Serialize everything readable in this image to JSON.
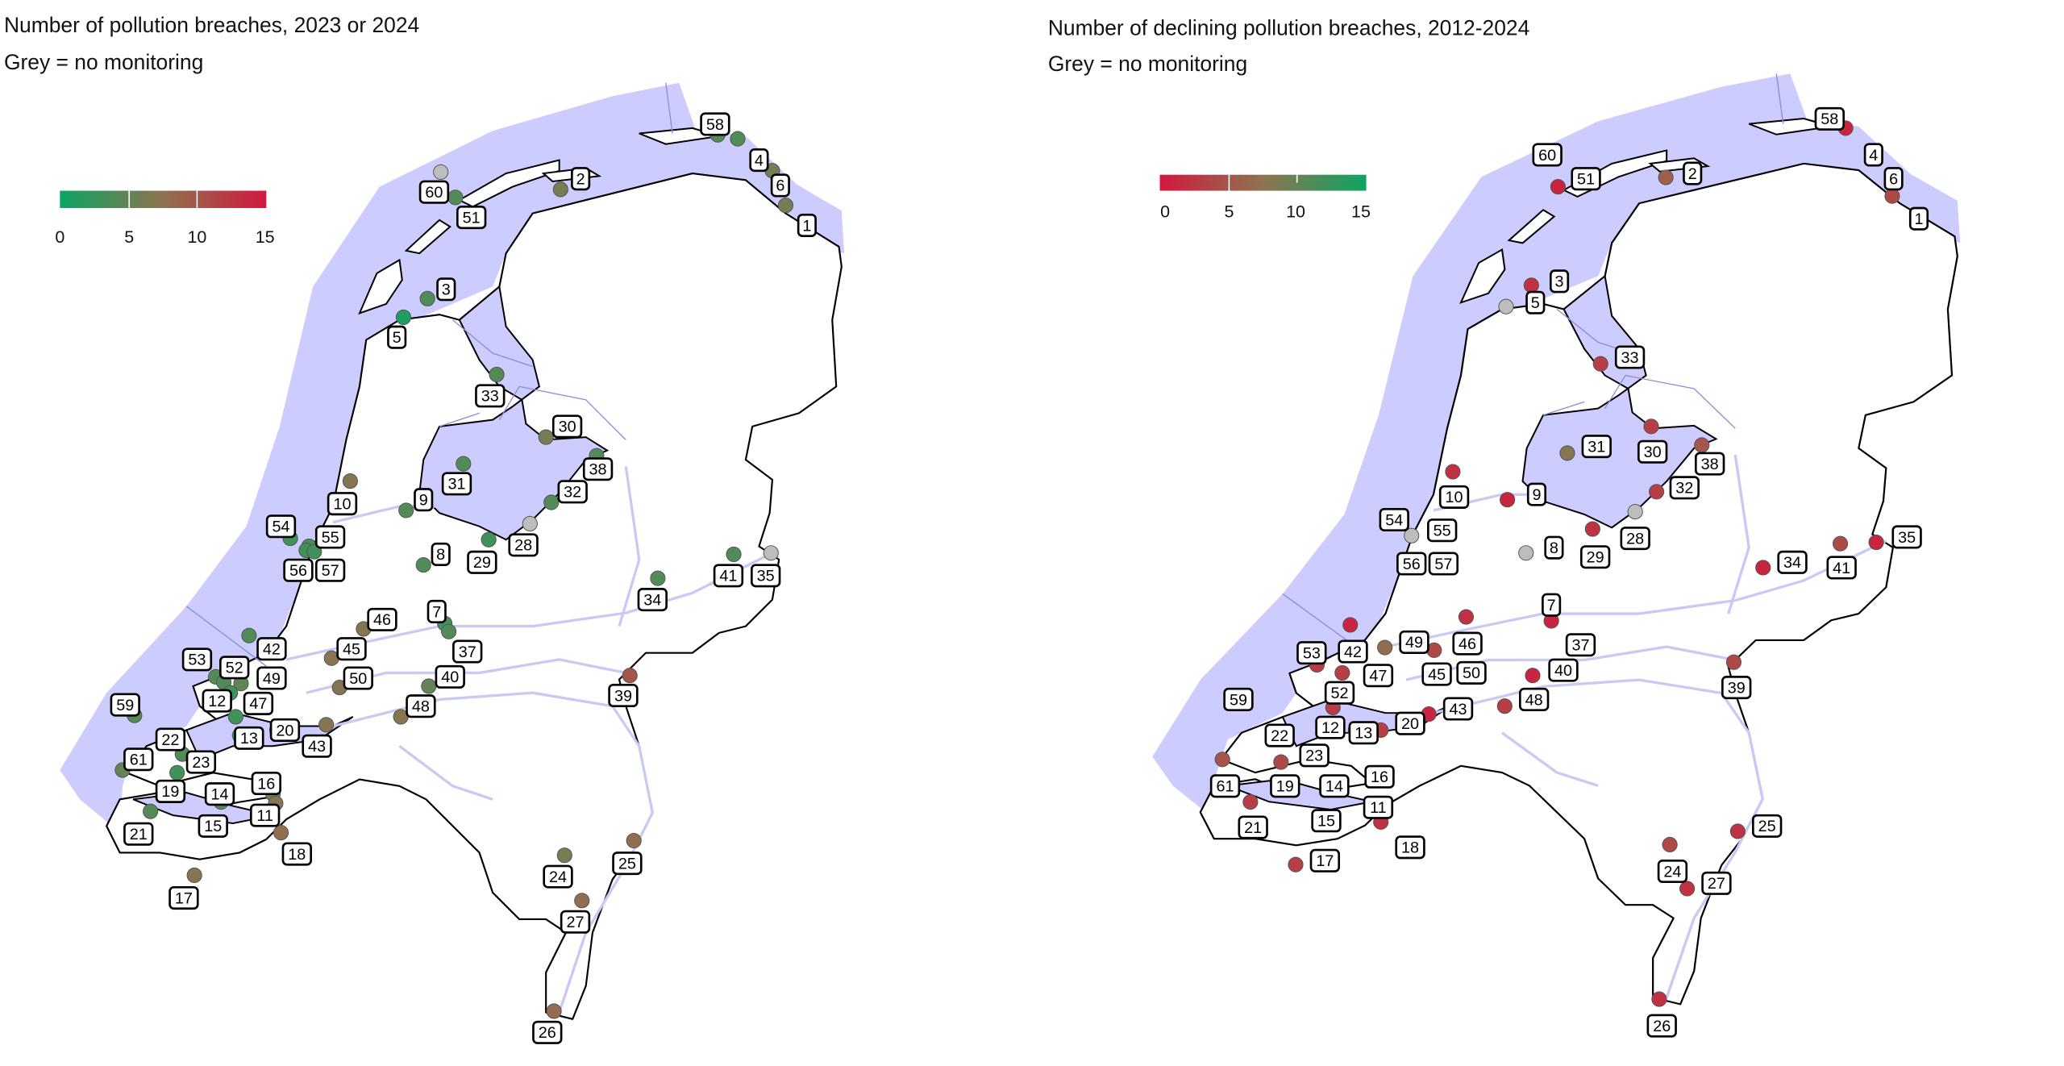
{
  "left_map": {
    "title": "Number of pollution breaches, 2023 or 2024",
    "subtitle": "Grey = no   monitoring",
    "legend": {
      "ticks": [
        "0",
        "5",
        "10",
        "15"
      ],
      "min": 0,
      "max": 15,
      "colors": [
        "#0da562",
        "#8e7350",
        "#d2193f"
      ]
    },
    "points": [
      {
        "id": "60",
        "value": null
      },
      {
        "id": "51",
        "value": 4
      },
      {
        "id": "2",
        "value": 6
      },
      {
        "id": "58",
        "value": 4
      },
      {
        "id": "4",
        "value": 4
      },
      {
        "id": "6",
        "value": 6
      },
      {
        "id": "1",
        "value": 6
      },
      {
        "id": "3",
        "value": 4
      },
      {
        "id": "5",
        "value": 1
      },
      {
        "id": "33",
        "value": 4
      },
      {
        "id": "30",
        "value": 6
      },
      {
        "id": "38",
        "value": 4
      },
      {
        "id": "31",
        "value": 4
      },
      {
        "id": "32",
        "value": 4
      },
      {
        "id": "9",
        "value": 4
      },
      {
        "id": "10",
        "value": 7
      },
      {
        "id": "28",
        "value": null
      },
      {
        "id": "29",
        "value": 3
      },
      {
        "id": "8",
        "value": 4
      },
      {
        "id": "54",
        "value": 3
      },
      {
        "id": "55",
        "value": 3
      },
      {
        "id": "56",
        "value": 3
      },
      {
        "id": "57",
        "value": 3
      },
      {
        "id": "41",
        "value": 4
      },
      {
        "id": "35",
        "value": null
      },
      {
        "id": "34",
        "value": 4
      },
      {
        "id": "7",
        "value": 3
      },
      {
        "id": "37",
        "value": 4
      },
      {
        "id": "46",
        "value": 7
      },
      {
        "id": "45",
        "value": 7
      },
      {
        "id": "42",
        "value": 4
      },
      {
        "id": "50",
        "value": 7
      },
      {
        "id": "40",
        "value": 5
      },
      {
        "id": "48",
        "value": 7
      },
      {
        "id": "39",
        "value": 10
      },
      {
        "id": "53",
        "value": 4
      },
      {
        "id": "52",
        "value": 4
      },
      {
        "id": "49",
        "value": 5
      },
      {
        "id": "12",
        "value": 3
      },
      {
        "id": "47",
        "value": 3
      },
      {
        "id": "59",
        "value": 4
      },
      {
        "id": "13",
        "value": 3
      },
      {
        "id": "20",
        "value": 4
      },
      {
        "id": "43",
        "value": 7
      },
      {
        "id": "22",
        "value": 4
      },
      {
        "id": "23",
        "value": 3
      },
      {
        "id": "61",
        "value": 5
      },
      {
        "id": "16",
        "value": 5
      },
      {
        "id": "19",
        "value": 4
      },
      {
        "id": "14",
        "value": 4
      },
      {
        "id": "11",
        "value": 7
      },
      {
        "id": "15",
        "value": 4
      },
      {
        "id": "21",
        "value": 4
      },
      {
        "id": "18",
        "value": 8
      },
      {
        "id": "17",
        "value": 7
      },
      {
        "id": "24",
        "value": 6
      },
      {
        "id": "25",
        "value": 8
      },
      {
        "id": "27",
        "value": 8
      },
      {
        "id": "26",
        "value": 8
      }
    ]
  },
  "right_map": {
    "title": "Number of declining pollution breaches, 2012-2024",
    "subtitle": "Grey = no monitoring",
    "legend": {
      "ticks": [
        "0",
        "5",
        "10",
        "15"
      ],
      "min": 0,
      "max": 15,
      "colors": [
        "#d2193f",
        "#8e7350",
        "#0da562"
      ]
    },
    "points": [
      {
        "id": "58",
        "value": 1
      },
      {
        "id": "4",
        "value": 2
      },
      {
        "id": "6",
        "value": 4
      },
      {
        "id": "1",
        "value": 3
      },
      {
        "id": "60",
        "value": 1
      },
      {
        "id": "51",
        "value": 1
      },
      {
        "id": "2",
        "value": 6
      },
      {
        "id": "3",
        "value": 2
      },
      {
        "id": "5",
        "value": null
      },
      {
        "id": "33",
        "value": 3
      },
      {
        "id": "30",
        "value": 3
      },
      {
        "id": "38",
        "value": 5
      },
      {
        "id": "31",
        "value": 8
      },
      {
        "id": "32",
        "value": 3
      },
      {
        "id": "10",
        "value": 2
      },
      {
        "id": "9",
        "value": 1
      },
      {
        "id": "28",
        "value": null
      },
      {
        "id": "29",
        "value": 2
      },
      {
        "id": "8",
        "value": null
      },
      {
        "id": "54",
        "value": 3
      },
      {
        "id": "55",
        "value": null
      },
      {
        "id": "56",
        "value": 3
      },
      {
        "id": "57",
        "value": 3
      },
      {
        "id": "34",
        "value": 1
      },
      {
        "id": "41",
        "value": 4
      },
      {
        "id": "35",
        "value": 1
      },
      {
        "id": "7",
        "value": 1
      },
      {
        "id": "37",
        "value": 2
      },
      {
        "id": "46",
        "value": 2
      },
      {
        "id": "49",
        "value": 7
      },
      {
        "id": "45",
        "value": 4
      },
      {
        "id": "50",
        "value": 3
      },
      {
        "id": "40",
        "value": 1
      },
      {
        "id": "48",
        "value": 3
      },
      {
        "id": "39",
        "value": 4
      },
      {
        "id": "42",
        "value": 1
      },
      {
        "id": "53",
        "value": 3
      },
      {
        "id": "47",
        "value": 3
      },
      {
        "id": "52",
        "value": 3
      },
      {
        "id": "59",
        "value": 4
      },
      {
        "id": "43",
        "value": 1
      },
      {
        "id": "20",
        "value": 3
      },
      {
        "id": "12",
        "value": 3
      },
      {
        "id": "13",
        "value": 3
      },
      {
        "id": "22",
        "value": 3
      },
      {
        "id": "23",
        "value": 4
      },
      {
        "id": "61",
        "value": 5
      },
      {
        "id": "19",
        "value": 3
      },
      {
        "id": "14",
        "value": 3
      },
      {
        "id": "16",
        "value": 3
      },
      {
        "id": "15",
        "value": 3
      },
      {
        "id": "11",
        "value": 2
      },
      {
        "id": "21",
        "value": 3
      },
      {
        "id": "18",
        "value": 3
      },
      {
        "id": "17",
        "value": 3
      },
      {
        "id": "24",
        "value": 4
      },
      {
        "id": "27",
        "value": 2
      },
      {
        "id": "25",
        "value": 2
      },
      {
        "id": "26",
        "value": 2
      }
    ]
  },
  "no_data_color": "#bdbdbd"
}
